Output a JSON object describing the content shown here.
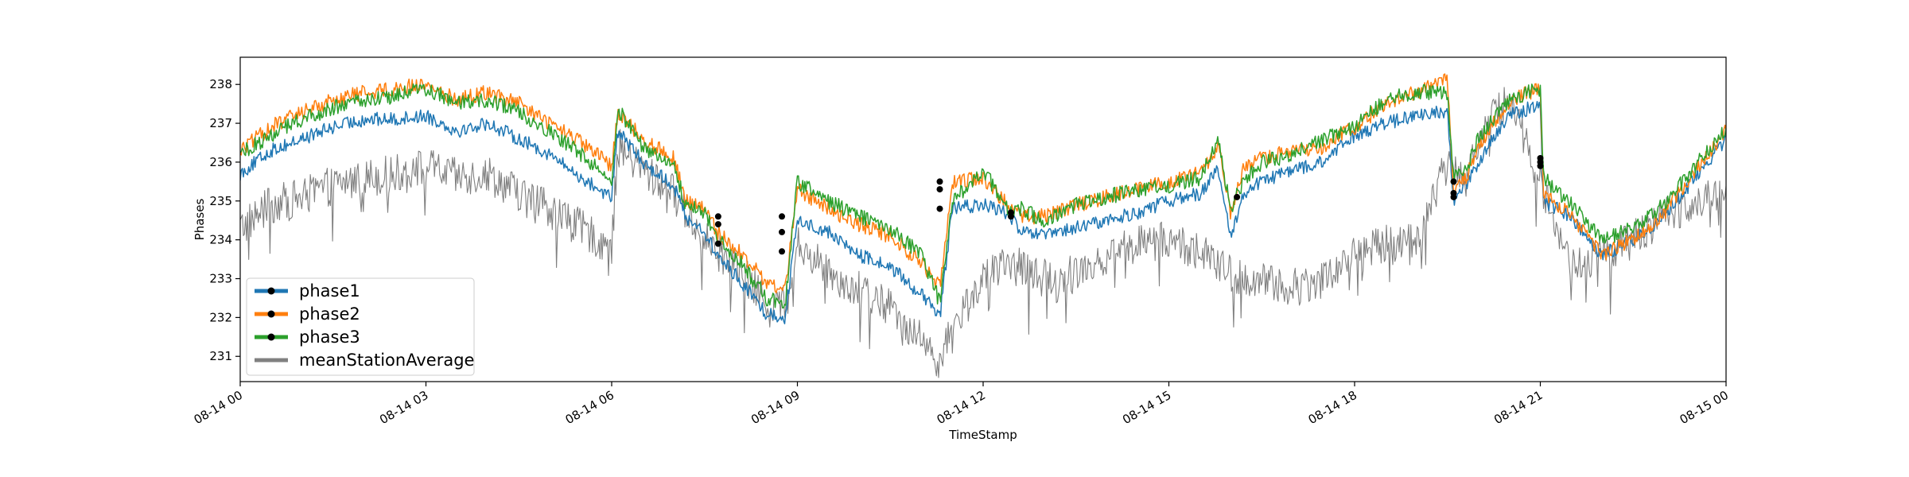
{
  "chart_data": {
    "type": "line",
    "title": "",
    "xlabel": "TimeStamp",
    "ylabel": "Phases",
    "x_ticks": [
      "08-14 00",
      "08-14 03",
      "08-14 06",
      "08-14 09",
      "08-14 12",
      "08-14 15",
      "08-14 18",
      "08-14 21",
      "08-15 00"
    ],
    "x_tick_hours": [
      0,
      3,
      6,
      9,
      12,
      15,
      18,
      21,
      24
    ],
    "xlim_hours": [
      0,
      24
    ],
    "y_ticks": [
      "231",
      "232",
      "233",
      "234",
      "235",
      "236",
      "237",
      "238"
    ],
    "y_tick_values": [
      231,
      232,
      233,
      234,
      235,
      236,
      237,
      238
    ],
    "ylim": [
      230.35,
      238.7
    ],
    "grid": false,
    "legend_position": "lower-left",
    "series": [
      {
        "name": "phase1",
        "color": "#1f77b4",
        "x_hours": [
          0,
          0.5,
          1,
          1.5,
          2,
          2.5,
          3,
          3.5,
          4,
          4.5,
          5,
          5.5,
          6,
          6.1,
          6.5,
          7,
          7.2,
          7.5,
          7.7,
          8,
          8.5,
          8.8,
          9,
          9.5,
          10,
          10.5,
          11,
          11.3,
          11.5,
          12,
          12.4,
          12.6,
          13,
          13.5,
          14,
          14.5,
          15,
          15.5,
          15.8,
          16,
          16.2,
          16.5,
          17,
          17.5,
          18,
          18.5,
          19,
          19.5,
          19.6,
          19.8,
          20,
          20.5,
          21,
          21.05,
          21.5,
          22,
          22.5,
          23,
          23.5,
          24
        ],
        "values": [
          235.7,
          236.3,
          236.6,
          236.9,
          237.1,
          237.1,
          237.2,
          236.8,
          237.0,
          236.6,
          236.2,
          235.6,
          235.1,
          236.8,
          236.0,
          235.4,
          234.6,
          234.2,
          233.6,
          233.1,
          232.1,
          232.0,
          234.5,
          234.2,
          233.6,
          233.3,
          232.6,
          232.0,
          234.8,
          234.9,
          234.7,
          234.2,
          234.1,
          234.3,
          234.5,
          234.7,
          235.0,
          235.2,
          235.8,
          234.0,
          235.2,
          235.5,
          235.8,
          236.0,
          236.7,
          237.0,
          237.2,
          237.3,
          235.0,
          235.4,
          236.0,
          237.2,
          237.5,
          235.0,
          234.6,
          233.6,
          234.0,
          234.6,
          235.6,
          236.6
        ]
      },
      {
        "name": "phase2",
        "color": "#ff7f0e",
        "x_hours": [
          0,
          0.5,
          1,
          1.5,
          2,
          2.5,
          3,
          3.5,
          4,
          4.5,
          5,
          5.5,
          6,
          6.1,
          6.5,
          7,
          7.2,
          7.5,
          7.7,
          8,
          8.5,
          8.8,
          9,
          9.5,
          10,
          10.5,
          11,
          11.3,
          11.5,
          12,
          12.4,
          12.6,
          13,
          13.5,
          14,
          14.5,
          15,
          15.5,
          15.8,
          16,
          16.2,
          16.5,
          17,
          17.5,
          18,
          18.5,
          19,
          19.5,
          19.6,
          19.8,
          20,
          20.5,
          21,
          21.05,
          21.5,
          22,
          22.5,
          23,
          23.5,
          24
        ],
        "values": [
          236.3,
          236.9,
          237.3,
          237.6,
          237.8,
          237.9,
          238.0,
          237.6,
          237.8,
          237.5,
          237.0,
          236.5,
          235.9,
          237.3,
          236.6,
          236.1,
          235.0,
          234.8,
          234.2,
          233.8,
          232.9,
          232.7,
          235.3,
          234.8,
          234.4,
          234.1,
          233.4,
          232.8,
          235.5,
          235.6,
          234.9,
          234.6,
          234.6,
          234.9,
          235.1,
          235.3,
          235.5,
          235.7,
          236.4,
          234.6,
          235.8,
          236.1,
          236.3,
          236.4,
          236.9,
          237.5,
          237.8,
          238.1,
          235.3,
          235.6,
          236.4,
          237.6,
          237.9,
          235.2,
          234.6,
          233.6,
          234.0,
          234.7,
          235.8,
          236.8
        ]
      },
      {
        "name": "phase3",
        "color": "#2ca02c",
        "x_hours": [
          0,
          0.5,
          1,
          1.5,
          2,
          2.5,
          3,
          3.5,
          4,
          4.5,
          5,
          5.5,
          6,
          6.1,
          6.5,
          7,
          7.2,
          7.5,
          7.7,
          8,
          8.5,
          8.8,
          9,
          9.5,
          10,
          10.5,
          11,
          11.3,
          11.5,
          12,
          12.4,
          12.6,
          13,
          13.5,
          14,
          14.5,
          15,
          15.5,
          15.8,
          16,
          16.2,
          16.5,
          17,
          17.5,
          18,
          18.5,
          19,
          19.5,
          19.6,
          19.8,
          20,
          20.5,
          21,
          21.05,
          21.5,
          22,
          22.5,
          23,
          23.5,
          24
        ],
        "values": [
          236.2,
          236.7,
          237.1,
          237.4,
          237.6,
          237.7,
          237.9,
          237.5,
          237.6,
          237.3,
          236.8,
          236.2,
          235.6,
          237.4,
          236.4,
          235.9,
          234.9,
          234.7,
          234.0,
          233.6,
          232.5,
          232.3,
          235.5,
          235.0,
          234.6,
          234.3,
          233.6,
          232.4,
          235.0,
          235.8,
          234.8,
          234.8,
          234.5,
          234.9,
          235.1,
          235.3,
          235.4,
          235.6,
          236.5,
          234.8,
          235.5,
          236.0,
          236.2,
          236.6,
          236.9,
          237.6,
          237.8,
          237.8,
          235.6,
          235.8,
          236.6,
          237.6,
          237.9,
          235.6,
          234.9,
          234.0,
          234.3,
          234.9,
          235.9,
          236.9
        ]
      },
      {
        "name": "meanStationAverage",
        "color": "#808080",
        "x_hours": [
          0,
          0.5,
          1,
          1.5,
          2,
          2.5,
          3,
          3.5,
          4,
          4.5,
          5,
          5.5,
          6,
          6.1,
          6.5,
          7,
          7.5,
          8,
          8.5,
          8.8,
          9,
          9.5,
          10,
          10.5,
          11,
          11.3,
          11.6,
          12,
          12.5,
          13,
          13.5,
          14,
          14.5,
          15,
          15.5,
          16,
          16.5,
          17,
          17.5,
          18,
          18.5,
          19,
          19.5,
          19.8,
          20,
          20.5,
          21,
          21.5,
          22,
          22.5,
          23,
          23.5,
          24
        ],
        "values": [
          234.3,
          234.9,
          235.1,
          235.4,
          235.6,
          235.7,
          235.9,
          235.6,
          235.7,
          235.2,
          234.8,
          234.3,
          233.8,
          236.4,
          235.8,
          235.2,
          234.0,
          233.3,
          232.4,
          232.3,
          233.9,
          233.2,
          232.7,
          232.3,
          231.4,
          230.9,
          232.0,
          233.0,
          233.4,
          233.0,
          233.2,
          233.6,
          233.9,
          234.0,
          233.7,
          233.1,
          232.9,
          232.8,
          233.0,
          233.6,
          233.9,
          234.0,
          236.0,
          235.6,
          236.6,
          237.7,
          235.5,
          233.3,
          233.6,
          234.0,
          234.6,
          235.0,
          235.3
        ]
      }
    ],
    "markers": {
      "phase1": [
        {
          "x_hours": 7.72,
          "value": 233.9
        },
        {
          "x_hours": 8.75,
          "value": 233.7
        },
        {
          "x_hours": 11.3,
          "value": 234.8
        },
        {
          "x_hours": 12.45,
          "value": 234.6
        },
        {
          "x_hours": 19.6,
          "value": 235.1
        },
        {
          "x_hours": 21.0,
          "value": 235.9
        }
      ],
      "phase2": [
        {
          "x_hours": 7.72,
          "value": 234.6
        },
        {
          "x_hours": 8.75,
          "value": 234.6
        },
        {
          "x_hours": 11.3,
          "value": 235.5
        },
        {
          "x_hours": 12.45,
          "value": 234.7
        },
        {
          "x_hours": 19.6,
          "value": 235.5
        },
        {
          "x_hours": 21.0,
          "value": 236.1
        }
      ],
      "phase3": [
        {
          "x_hours": 7.72,
          "value": 234.4
        },
        {
          "x_hours": 8.75,
          "value": 234.2
        },
        {
          "x_hours": 11.3,
          "value": 235.3
        },
        {
          "x_hours": 16.1,
          "value": 235.1
        },
        {
          "x_hours": 19.6,
          "value": 235.2
        },
        {
          "x_hours": 21.0,
          "value": 236.0
        }
      ]
    }
  }
}
